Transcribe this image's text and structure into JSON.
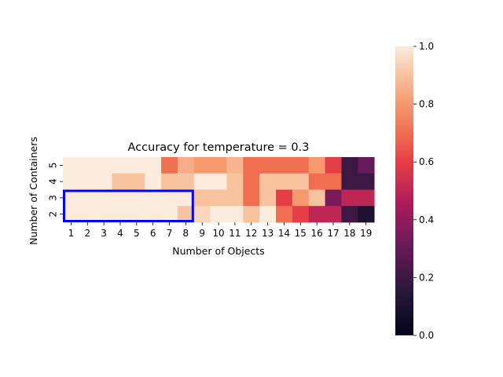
{
  "chart_data": {
    "type": "heatmap",
    "title": "Accuracy for temperature = 0.3",
    "xlabel": "Number of Objects",
    "ylabel": "Number of Containers",
    "x": [
      1,
      2,
      3,
      4,
      5,
      6,
      7,
      8,
      9,
      10,
      11,
      12,
      13,
      14,
      15,
      16,
      17,
      18,
      19
    ],
    "y": [
      5,
      4,
      3,
      2
    ],
    "values": [
      [
        1.0,
        1.0,
        1.0,
        1.0,
        1.0,
        1.0,
        0.7,
        0.85,
        0.8,
        0.8,
        0.87,
        0.7,
        0.7,
        0.7,
        0.7,
        0.8,
        0.6,
        0.2,
        0.3
      ],
      [
        1.0,
        1.0,
        1.0,
        0.9,
        0.9,
        1.0,
        0.9,
        0.9,
        1.0,
        1.0,
        0.9,
        0.7,
        0.9,
        0.9,
        0.9,
        0.7,
        0.7,
        0.2,
        0.2
      ],
      [
        1.0,
        1.0,
        1.0,
        1.0,
        1.0,
        1.0,
        1.0,
        1.0,
        0.9,
        0.9,
        0.9,
        0.7,
        0.9,
        0.6,
        0.8,
        0.9,
        0.35,
        0.5,
        0.5
      ],
      [
        1.0,
        1.0,
        1.0,
        1.0,
        1.0,
        1.0,
        1.0,
        0.9,
        0.95,
        1.0,
        1.0,
        0.9,
        1.0,
        0.7,
        0.6,
        0.5,
        0.5,
        0.2,
        0.1
      ]
    ],
    "colorbar": {
      "min": 0.0,
      "max": 1.0,
      "ticks": [
        "0.0",
        "0.2",
        "0.4",
        "0.6",
        "0.8",
        "1.0"
      ],
      "colormap": "rocket"
    },
    "highlight": {
      "x_from": 1,
      "x_to": 8,
      "y_from": 3,
      "y_to": 2,
      "color": "#0000ff"
    }
  }
}
